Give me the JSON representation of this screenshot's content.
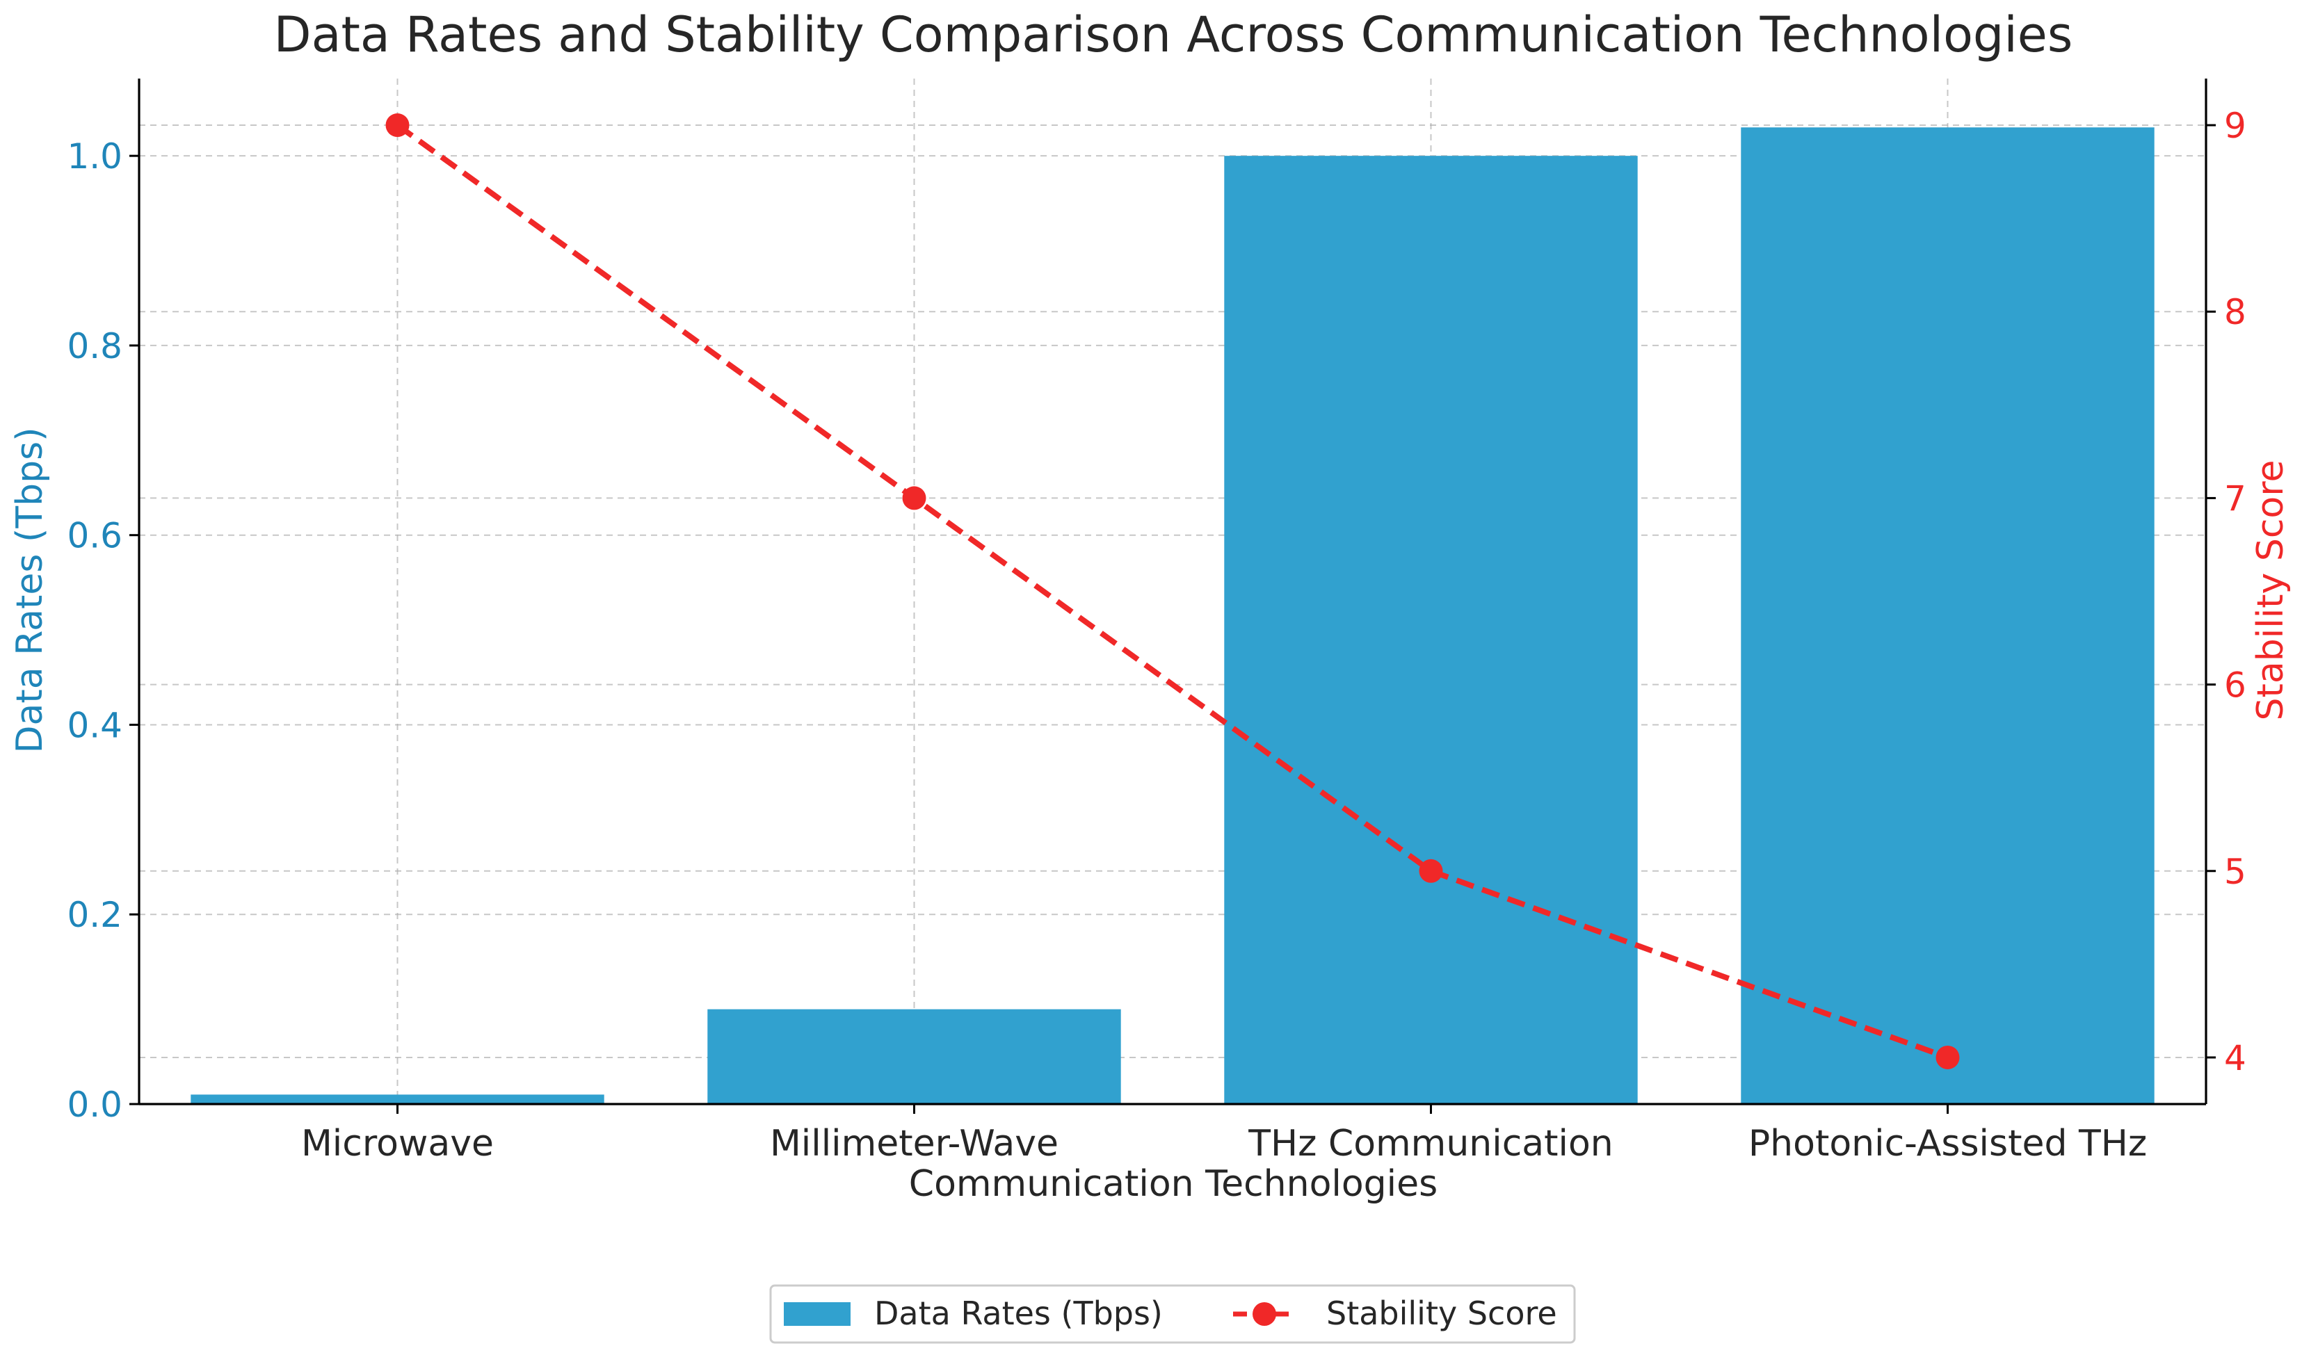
{
  "chart_data": {
    "type": "bar",
    "title": "Data Rates and Stability Comparison Across Communication Technologies",
    "xlabel": "Communication Technologies",
    "categories": [
      "Microwave",
      "Millimeter-Wave",
      "THz Communication",
      "Photonic-Assisted THz"
    ],
    "series": [
      {
        "name": "Data Rates (Tbps)",
        "type": "bar",
        "axis": "left",
        "values": [
          0.01,
          0.1,
          1.0,
          1.03
        ],
        "color": "#31a1cf"
      },
      {
        "name": "Stability Score",
        "type": "line",
        "axis": "right",
        "values": [
          9,
          7,
          5,
          4
        ],
        "color": "#f02828",
        "line_style": "dashed",
        "marker": "circle"
      }
    ],
    "left_axis": {
      "label": "Data Rates (Tbps)",
      "ylim": [
        0,
        1.0815
      ],
      "ticks": [
        0.0,
        0.2,
        0.4,
        0.6,
        0.8,
        1.0
      ],
      "tick_labels": [
        "0.0",
        "0.2",
        "0.4",
        "0.6",
        "0.8",
        "1.0"
      ],
      "color": "#1f85b9"
    },
    "right_axis": {
      "label": "Stability Score",
      "ylim": [
        3.75,
        9.25
      ],
      "ticks": [
        4,
        5,
        6,
        7,
        8,
        9
      ],
      "tick_labels": [
        "4",
        "5",
        "6",
        "7",
        "8",
        "9"
      ],
      "color": "#f02828"
    },
    "grid": true,
    "legend": {
      "position": "bottom-center",
      "entries": [
        "Data Rates (Tbps)",
        "Stability Score"
      ]
    }
  }
}
